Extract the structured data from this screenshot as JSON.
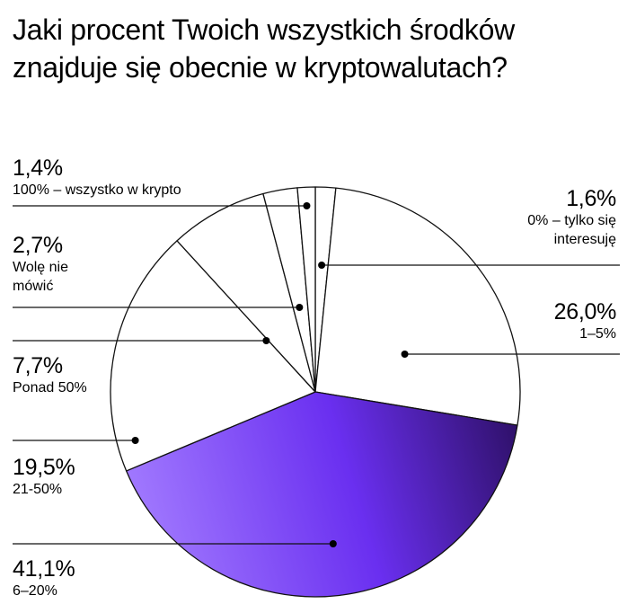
{
  "chart_data": {
    "type": "pie",
    "title": "Jaki procent Twoich wszystkich środków znajduje się obecnie w kryptowalutach?",
    "slices": [
      {
        "label": "0% – tylko się interesuję",
        "value": 1.6,
        "value_label": "1,6%"
      },
      {
        "label": "1–5%",
        "value": 26.0,
        "value_label": "26,0%"
      },
      {
        "label": "6–20%",
        "value": 41.1,
        "value_label": "41,1%"
      },
      {
        "label": "21-50%",
        "value": 19.5,
        "value_label": "19,5%"
      },
      {
        "label": "Ponad 50%",
        "value": 7.7,
        "value_label": "7,7%"
      },
      {
        "label": "Wolę nie mówić",
        "value": 2.7,
        "value_label": "2,7%"
      },
      {
        "label": "100% – wszystko w krypto",
        "value": 1.4,
        "value_label": "1,4%"
      }
    ],
    "colors": {
      "default_fill": "#ffffff",
      "outline": "#111111",
      "highlight_gradient": [
        "#a37cff",
        "#6a2ff0",
        "#2c0f63"
      ]
    },
    "highlight_slice": "6–20%"
  }
}
